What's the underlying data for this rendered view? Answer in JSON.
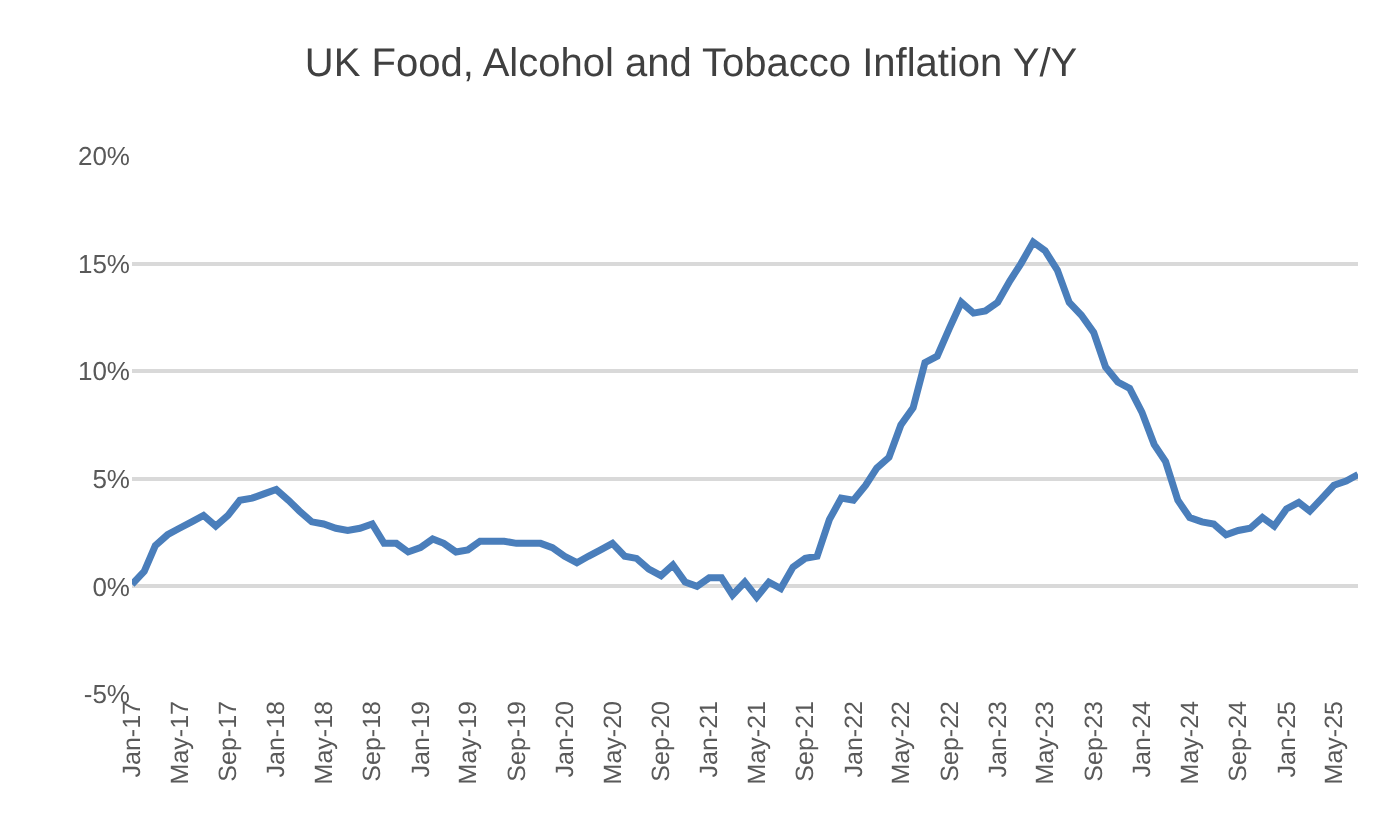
{
  "chart_data": {
    "type": "line",
    "title": "UK Food, Alcohol and Tobacco Inflation Y/Y",
    "x": [
      "2017-01",
      "2017-02",
      "2017-03",
      "2017-04",
      "2017-05",
      "2017-06",
      "2017-07",
      "2017-08",
      "2017-09",
      "2017-10",
      "2017-11",
      "2017-12",
      "2018-01",
      "2018-02",
      "2018-03",
      "2018-04",
      "2018-05",
      "2018-06",
      "2018-07",
      "2018-08",
      "2018-09",
      "2018-10",
      "2018-11",
      "2018-12",
      "2019-01",
      "2019-02",
      "2019-03",
      "2019-04",
      "2019-05",
      "2019-06",
      "2019-07",
      "2019-08",
      "2019-09",
      "2019-10",
      "2019-11",
      "2019-12",
      "2020-01",
      "2020-02",
      "2020-03",
      "2020-04",
      "2020-05",
      "2020-06",
      "2020-07",
      "2020-08",
      "2020-09",
      "2020-10",
      "2020-11",
      "2020-12",
      "2021-01",
      "2021-02",
      "2021-03",
      "2021-04",
      "2021-05",
      "2021-06",
      "2021-07",
      "2021-08",
      "2021-09",
      "2021-10",
      "2021-11",
      "2021-12",
      "2022-01",
      "2022-02",
      "2022-03",
      "2022-04",
      "2022-05",
      "2022-06",
      "2022-07",
      "2022-08",
      "2022-09",
      "2022-10",
      "2022-11",
      "2022-12",
      "2023-01",
      "2023-02",
      "2023-03",
      "2023-04",
      "2023-05",
      "2023-06",
      "2023-07",
      "2023-08",
      "2023-09",
      "2023-10",
      "2023-11",
      "2023-12",
      "2024-01",
      "2024-02",
      "2024-03",
      "2024-04",
      "2024-05",
      "2024-06",
      "2024-07",
      "2024-08",
      "2024-09",
      "2024-10",
      "2024-11",
      "2024-12",
      "2025-01",
      "2025-02",
      "2025-03",
      "2025-04",
      "2025-05",
      "2025-06",
      "2025-07"
    ],
    "series": [
      {
        "color": "#4a7ebb",
        "values": [
          0.1,
          0.7,
          1.9,
          2.4,
          2.7,
          3.0,
          3.3,
          2.8,
          3.3,
          4.0,
          4.1,
          4.3,
          4.5,
          4.0,
          3.5,
          3.0,
          2.9,
          2.7,
          2.6,
          2.7,
          2.9,
          2.0,
          2.0,
          1.6,
          1.8,
          2.2,
          2.0,
          1.6,
          1.7,
          2.1,
          2.1,
          2.1,
          2.0,
          2.0,
          2.0,
          1.8,
          1.4,
          1.1,
          1.4,
          1.7,
          2.0,
          1.4,
          1.3,
          0.8,
          0.5,
          1.0,
          0.2,
          0.0,
          0.4,
          0.4,
          -0.4,
          0.2,
          -0.5,
          0.2,
          -0.1,
          0.9,
          1.3,
          1.4,
          3.1,
          4.1,
          4.0,
          4.7,
          5.5,
          6.0,
          7.5,
          8.3,
          10.4,
          10.7,
          12.0,
          13.2,
          12.7,
          12.8,
          13.2,
          14.2,
          15.0,
          16.0,
          15.6,
          14.7,
          13.2,
          12.6,
          11.8,
          10.2,
          9.5,
          9.2,
          8.1,
          6.6,
          5.8,
          4.0,
          3.2,
          3.0,
          2.9,
          2.4,
          2.6,
          2.7,
          3.2,
          2.8,
          3.6,
          3.9,
          3.5,
          4.1,
          4.7,
          4.9,
          5.2
        ]
      }
    ],
    "xlim": [
      "2017-01",
      "2025-07"
    ],
    "xticks": [
      {
        "value": "2017-01",
        "label": "Jan-17"
      },
      {
        "value": "2017-05",
        "label": "May-17"
      },
      {
        "value": "2017-09",
        "label": "Sep-17"
      },
      {
        "value": "2018-01",
        "label": "Jan-18"
      },
      {
        "value": "2018-05",
        "label": "May-18"
      },
      {
        "value": "2018-09",
        "label": "Sep-18"
      },
      {
        "value": "2019-01",
        "label": "Jan-19"
      },
      {
        "value": "2019-05",
        "label": "May-19"
      },
      {
        "value": "2019-09",
        "label": "Sep-19"
      },
      {
        "value": "2020-01",
        "label": "Jan-20"
      },
      {
        "value": "2020-05",
        "label": "May-20"
      },
      {
        "value": "2020-09",
        "label": "Sep-20"
      },
      {
        "value": "2021-01",
        "label": "Jan-21"
      },
      {
        "value": "2021-05",
        "label": "May-21"
      },
      {
        "value": "2021-09",
        "label": "Sep-21"
      },
      {
        "value": "2022-01",
        "label": "Jan-22"
      },
      {
        "value": "2022-05",
        "label": "May-22"
      },
      {
        "value": "2022-09",
        "label": "Sep-22"
      },
      {
        "value": "2023-01",
        "label": "Jan-23"
      },
      {
        "value": "2023-05",
        "label": "May-23"
      },
      {
        "value": "2023-09",
        "label": "Sep-23"
      },
      {
        "value": "2024-01",
        "label": "Jan-24"
      },
      {
        "value": "2024-05",
        "label": "May-24"
      },
      {
        "value": "2024-09",
        "label": "Sep-24"
      },
      {
        "value": "2025-01",
        "label": "Jan-25"
      },
      {
        "value": "2025-05",
        "label": "May-25"
      }
    ],
    "ylim": [
      -5,
      20
    ],
    "yticks": [
      {
        "value": -5,
        "label": "-5%"
      },
      {
        "value": 0,
        "label": "0%"
      },
      {
        "value": 5,
        "label": "5%"
      },
      {
        "value": 10,
        "label": "10%"
      },
      {
        "value": 15,
        "label": "15%"
      },
      {
        "value": 20,
        "label": "20%"
      }
    ],
    "grid": "y",
    "marker": "none",
    "line_style": "solid"
  }
}
